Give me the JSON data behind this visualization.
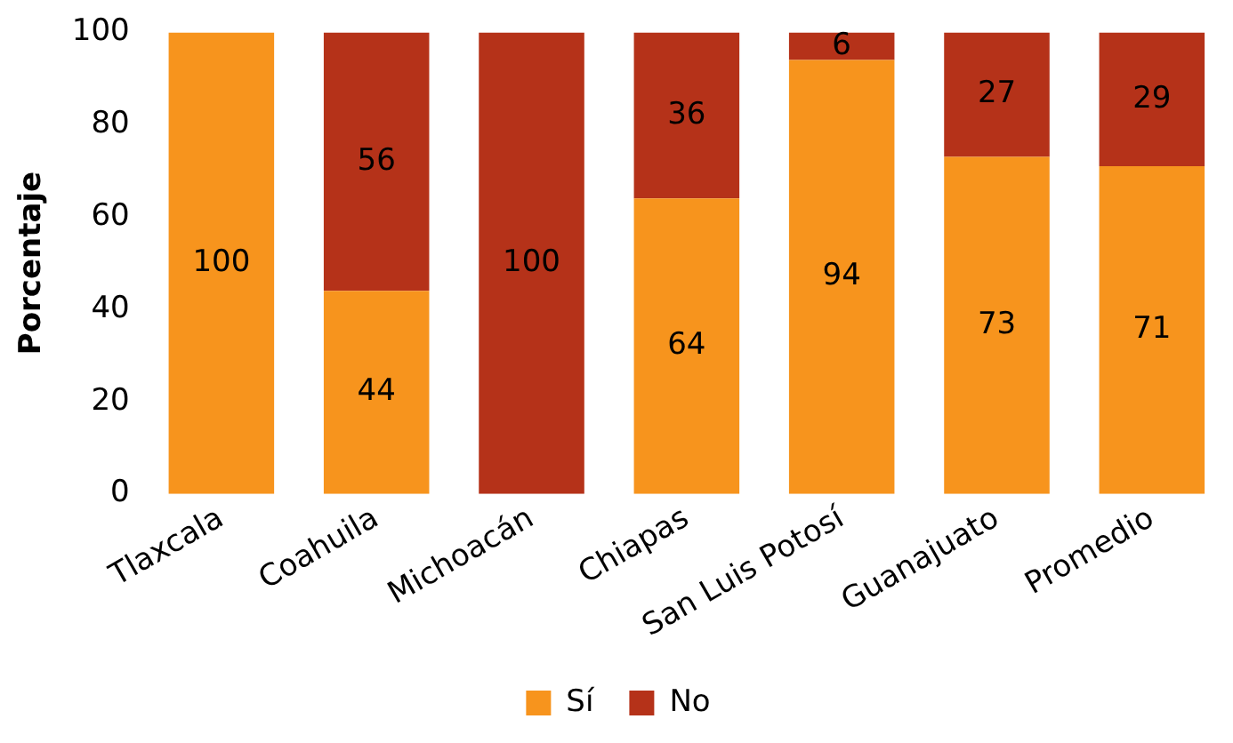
{
  "chart_data": {
    "type": "bar",
    "stacked": true,
    "ylabel": "Porcentaje",
    "categories": [
      "Tlaxcala",
      "Coahuila",
      "Michoacán",
      "Chiapas",
      "San Luis Potosí",
      "Guanajuato",
      "Promedio"
    ],
    "series": [
      {
        "name": "Sí",
        "color": "#f7941d",
        "values": [
          100,
          44,
          0,
          64,
          94,
          73,
          71
        ],
        "value_labels": [
          "100",
          "44",
          null,
          "64",
          "94",
          "73",
          "71"
        ]
      },
      {
        "name": "No",
        "color": "#b53219",
        "values": [
          0,
          56,
          100,
          36,
          6,
          27,
          29
        ],
        "value_labels": [
          null,
          "56",
          "100",
          "36",
          "6",
          "27",
          "29"
        ]
      }
    ],
    "ylim": [
      0,
      100
    ],
    "yticks": [
      0,
      20,
      40,
      60,
      80,
      100
    ],
    "grid": false,
    "legend": "bottom"
  }
}
